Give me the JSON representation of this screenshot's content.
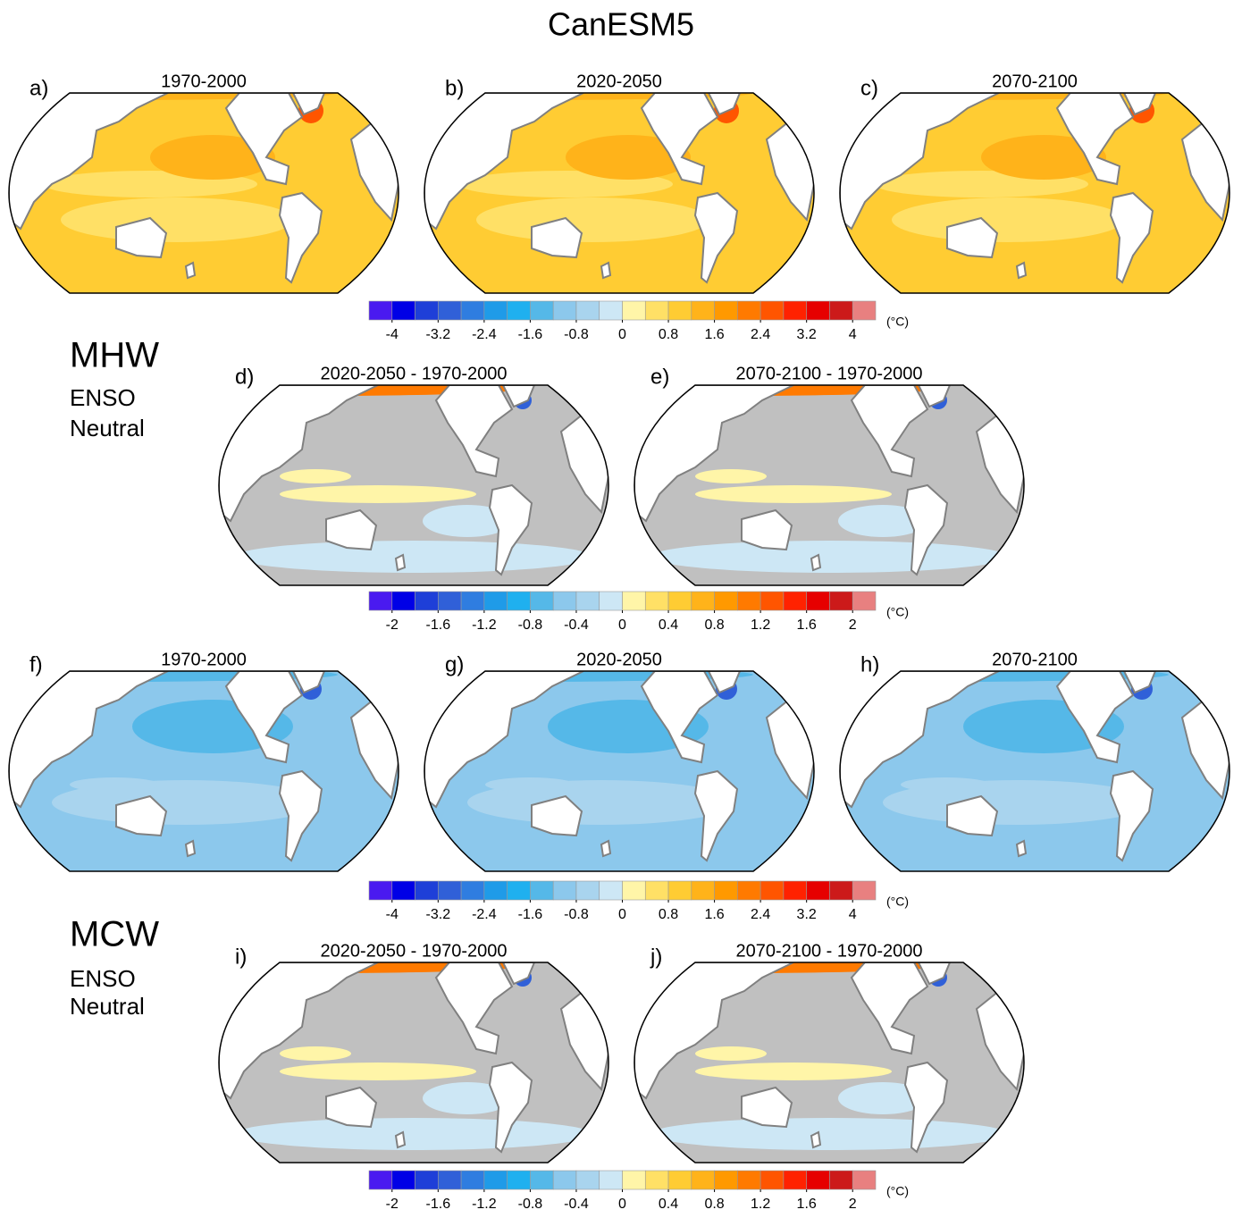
{
  "title": "CanESM5",
  "sections": [
    {
      "name": "MHW",
      "lines": [
        "ENSO",
        "Neutral"
      ]
    },
    {
      "name": "MCW",
      "lines": [
        "ENSO",
        "Neutral"
      ]
    }
  ],
  "panels": [
    {
      "letter": "a)",
      "title": "1970-2000"
    },
    {
      "letter": "b)",
      "title": "2020-2050"
    },
    {
      "letter": "c)",
      "title": "2070-2100"
    },
    {
      "letter": "d)",
      "title": "2020-2050 - 1970-2000"
    },
    {
      "letter": "e)",
      "title": "2070-2100 - 1970-2000"
    },
    {
      "letter": "f)",
      "title": "1970-2000"
    },
    {
      "letter": "g)",
      "title": "2020-2050"
    },
    {
      "letter": "h)",
      "title": "2070-2100"
    },
    {
      "letter": "i)",
      "title": "2020-2050 - 1970-2000"
    },
    {
      "letter": "j)",
      "title": "2070-2100 - 1970-2000"
    }
  ],
  "colorbars": [
    {
      "lim": [
        -4.4,
        4.4
      ],
      "ticks": [
        -4,
        -3.2,
        -2.4,
        -1.6,
        -0.8,
        0,
        0.8,
        1.6,
        2.4,
        3.2,
        4
      ],
      "unit": "(°C)",
      "colors": [
        "#4a1af0",
        "#0000e6",
        "#1e3fd8",
        "#3060d8",
        "#2f7de0",
        "#1f9be8",
        "#1fb0ef",
        "#55b8e8",
        "#8cc8ec",
        "#a9d4ee",
        "#cde7f5",
        "#fff5a8",
        "#ffe066",
        "#ffcc33",
        "#ffb31a",
        "#ff9900",
        "#ff7a00",
        "#ff5500",
        "#ff2200",
        "#e60000",
        "#cc1a1a",
        "#e88080"
      ]
    },
    {
      "lim": [
        -2.2,
        2.2
      ],
      "ticks": [
        -2,
        -1.6,
        -1.2,
        -0.8,
        -0.4,
        0,
        0.4,
        0.8,
        1.2,
        1.6,
        2
      ],
      "unit": "(°C)",
      "colors": [
        "#4a1af0",
        "#0000e6",
        "#1e3fd8",
        "#3060d8",
        "#2f7de0",
        "#1f9be8",
        "#1fb0ef",
        "#55b8e8",
        "#8cc8ec",
        "#a9d4ee",
        "#cde7f5",
        "#fff5a8",
        "#ffe066",
        "#ffcc33",
        "#ffb31a",
        "#ff9900",
        "#ff7a00",
        "#ff5500",
        "#ff2200",
        "#e60000",
        "#cc1a1a",
        "#e88080"
      ]
    },
    {
      "lim": [
        -4.4,
        4.4
      ],
      "ticks": [
        -4,
        -3.2,
        -2.4,
        -1.6,
        -0.8,
        0,
        0.8,
        1.6,
        2.4,
        3.2,
        4
      ],
      "unit": "(°C)",
      "colors": [
        "#4a1af0",
        "#0000e6",
        "#1e3fd8",
        "#3060d8",
        "#2f7de0",
        "#1f9be8",
        "#1fb0ef",
        "#55b8e8",
        "#8cc8ec",
        "#a9d4ee",
        "#cde7f5",
        "#fff5a8",
        "#ffe066",
        "#ffcc33",
        "#ffb31a",
        "#ff9900",
        "#ff7a00",
        "#ff5500",
        "#ff2200",
        "#e60000",
        "#cc1a1a",
        "#e88080"
      ]
    },
    {
      "lim": [
        -2.2,
        2.2
      ],
      "ticks": [
        -2,
        -1.6,
        -1.2,
        -0.8,
        -0.4,
        0,
        0.4,
        0.8,
        1.2,
        1.6,
        2
      ],
      "unit": "(°C)",
      "colors": [
        "#4a1af0",
        "#0000e6",
        "#1e3fd8",
        "#3060d8",
        "#2f7de0",
        "#1f9be8",
        "#1fb0ef",
        "#55b8e8",
        "#8cc8ec",
        "#a9d4ee",
        "#cde7f5",
        "#fff5a8",
        "#ffe066",
        "#ffcc33",
        "#ffb31a",
        "#ff9900",
        "#ff7a00",
        "#ff5500",
        "#ff2200",
        "#e60000",
        "#cc1a1a",
        "#e88080"
      ]
    }
  ]
}
